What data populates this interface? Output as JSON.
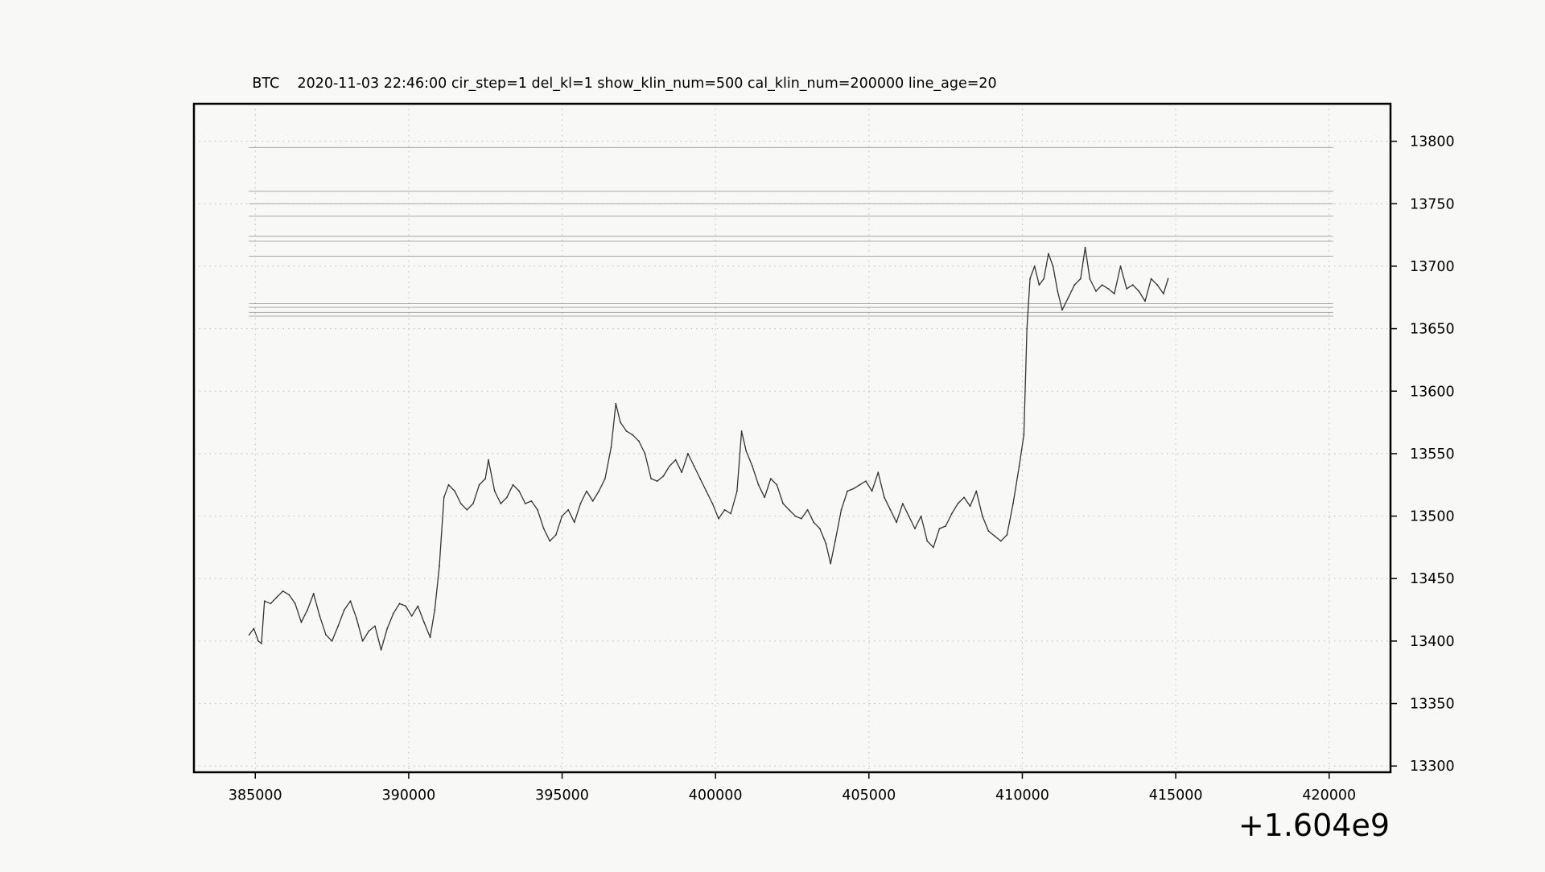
{
  "chart_data": {
    "type": "line",
    "title": "BTC    2020-11-03 22:46:00 cir_step=1 del_kl=1 show_klin_num=500 cal_klin_num=200000 line_age=20",
    "xlabel": "",
    "ylabel": "",
    "x_offset_label": "+1.604e9",
    "xlim": [
      383000,
      422000
    ],
    "ylim": [
      13295,
      13830
    ],
    "x_ticks": [
      385000,
      390000,
      395000,
      400000,
      405000,
      410000,
      415000,
      420000
    ],
    "x_tick_labels": [
      "385000",
      "390000",
      "395000",
      "400000",
      "405000",
      "410000",
      "415000",
      "420000"
    ],
    "y_ticks": [
      13300,
      13350,
      13400,
      13450,
      13500,
      13550,
      13600,
      13650,
      13700,
      13750,
      13800
    ],
    "y_tick_labels": [
      "13300",
      "13350",
      "13400",
      "13450",
      "13500",
      "13550",
      "13600",
      "13650",
      "13700",
      "13750",
      "13800"
    ],
    "y_axis_position": "right",
    "grid": true,
    "series": [
      {
        "type": "line",
        "color": "#333333",
        "points": [
          [
            384800,
            13405
          ],
          [
            384950,
            13410
          ],
          [
            385100,
            13400
          ],
          [
            385200,
            13398
          ],
          [
            385300,
            13432
          ],
          [
            385500,
            13430
          ],
          [
            385700,
            13435
          ],
          [
            385900,
            13440
          ],
          [
            386100,
            13437
          ],
          [
            386300,
            13430
          ],
          [
            386500,
            13415
          ],
          [
            386700,
            13425
          ],
          [
            386900,
            13438
          ],
          [
            387100,
            13420
          ],
          [
            387300,
            13405
          ],
          [
            387500,
            13400
          ],
          [
            387700,
            13412
          ],
          [
            387900,
            13425
          ],
          [
            388100,
            13432
          ],
          [
            388300,
            13418
          ],
          [
            388500,
            13400
          ],
          [
            388700,
            13408
          ],
          [
            388900,
            13412
          ],
          [
            389100,
            13393
          ],
          [
            389300,
            13410
          ],
          [
            389500,
            13422
          ],
          [
            389700,
            13430
          ],
          [
            389900,
            13428
          ],
          [
            390100,
            13420
          ],
          [
            390300,
            13428
          ],
          [
            390500,
            13415
          ],
          [
            390700,
            13403
          ],
          [
            390850,
            13425
          ],
          [
            391000,
            13460
          ],
          [
            391150,
            13515
          ],
          [
            391300,
            13525
          ],
          [
            391500,
            13520
          ],
          [
            391700,
            13510
          ],
          [
            391900,
            13505
          ],
          [
            392100,
            13510
          ],
          [
            392300,
            13525
          ],
          [
            392500,
            13530
          ],
          [
            392600,
            13545
          ],
          [
            392800,
            13520
          ],
          [
            393000,
            13510
          ],
          [
            393200,
            13515
          ],
          [
            393400,
            13525
          ],
          [
            393600,
            13520
          ],
          [
            393800,
            13510
          ],
          [
            394000,
            13512
          ],
          [
            394200,
            13505
          ],
          [
            394400,
            13490
          ],
          [
            394600,
            13480
          ],
          [
            394800,
            13485
          ],
          [
            395000,
            13500
          ],
          [
            395200,
            13505
          ],
          [
            395400,
            13495
          ],
          [
            395600,
            13510
          ],
          [
            395800,
            13520
          ],
          [
            396000,
            13512
          ],
          [
            396200,
            13520
          ],
          [
            396400,
            13530
          ],
          [
            396600,
            13555
          ],
          [
            396750,
            13590
          ],
          [
            396900,
            13575
          ],
          [
            397100,
            13568
          ],
          [
            397300,
            13565
          ],
          [
            397500,
            13560
          ],
          [
            397700,
            13550
          ],
          [
            397900,
            13530
          ],
          [
            398100,
            13528
          ],
          [
            398300,
            13532
          ],
          [
            398500,
            13540
          ],
          [
            398700,
            13545
          ],
          [
            398900,
            13535
          ],
          [
            399100,
            13550
          ],
          [
            399300,
            13540
          ],
          [
            399500,
            13530
          ],
          [
            399700,
            13520
          ],
          [
            399900,
            13510
          ],
          [
            400100,
            13498
          ],
          [
            400300,
            13505
          ],
          [
            400500,
            13502
          ],
          [
            400700,
            13520
          ],
          [
            400850,
            13568
          ],
          [
            401000,
            13552
          ],
          [
            401200,
            13540
          ],
          [
            401400,
            13525
          ],
          [
            401600,
            13515
          ],
          [
            401800,
            13530
          ],
          [
            402000,
            13525
          ],
          [
            402200,
            13510
          ],
          [
            402400,
            13505
          ],
          [
            402600,
            13500
          ],
          [
            402800,
            13498
          ],
          [
            403000,
            13505
          ],
          [
            403200,
            13495
          ],
          [
            403400,
            13490
          ],
          [
            403600,
            13478
          ],
          [
            403750,
            13462
          ],
          [
            403900,
            13480
          ],
          [
            404100,
            13505
          ],
          [
            404300,
            13520
          ],
          [
            404500,
            13522
          ],
          [
            404700,
            13525
          ],
          [
            404900,
            13528
          ],
          [
            405100,
            13520
          ],
          [
            405300,
            13535
          ],
          [
            405500,
            13515
          ],
          [
            405700,
            13505
          ],
          [
            405900,
            13495
          ],
          [
            406100,
            13510
          ],
          [
            406300,
            13500
          ],
          [
            406500,
            13490
          ],
          [
            406700,
            13500
          ],
          [
            406900,
            13480
          ],
          [
            407100,
            13475
          ],
          [
            407300,
            13490
          ],
          [
            407500,
            13492
          ],
          [
            407700,
            13502
          ],
          [
            407900,
            13510
          ],
          [
            408100,
            13515
          ],
          [
            408300,
            13508
          ],
          [
            408500,
            13520
          ],
          [
            408700,
            13500
          ],
          [
            408900,
            13488
          ],
          [
            409100,
            13484
          ],
          [
            409300,
            13480
          ],
          [
            409500,
            13485
          ],
          [
            409700,
            13510
          ],
          [
            409900,
            13540
          ],
          [
            410050,
            13565
          ],
          [
            410150,
            13650
          ],
          [
            410250,
            13690
          ],
          [
            410400,
            13700
          ],
          [
            410550,
            13685
          ],
          [
            410700,
            13690
          ],
          [
            410850,
            13710
          ],
          [
            411000,
            13700
          ],
          [
            411150,
            13680
          ],
          [
            411300,
            13665
          ],
          [
            411500,
            13675
          ],
          [
            411700,
            13685
          ],
          [
            411900,
            13690
          ],
          [
            412050,
            13715
          ],
          [
            412200,
            13690
          ],
          [
            412400,
            13680
          ],
          [
            412600,
            13685
          ],
          [
            412800,
            13682
          ],
          [
            413000,
            13678
          ],
          [
            413200,
            13700
          ],
          [
            413400,
            13682
          ],
          [
            413600,
            13685
          ],
          [
            413800,
            13680
          ],
          [
            414000,
            13672
          ],
          [
            414200,
            13690
          ],
          [
            414400,
            13685
          ],
          [
            414600,
            13678
          ],
          [
            414750,
            13690
          ]
        ]
      }
    ],
    "horizontal_lines": [
      13667,
      13670,
      13660,
      13663,
      13708,
      13720,
      13724,
      13740,
      13750,
      13760,
      13795
    ]
  }
}
